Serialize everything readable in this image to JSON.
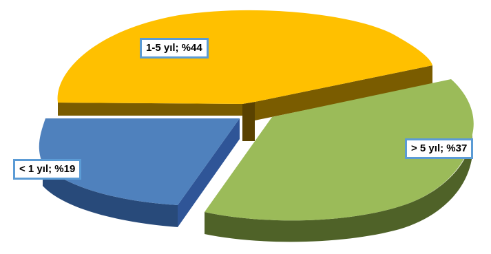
{
  "chart_data": {
    "type": "pie",
    "three_d": true,
    "exploded": true,
    "slices": [
      {
        "label": "1-5 yıl; %44",
        "category": "1-5 yıl",
        "value": 44,
        "color": "#ffc000"
      },
      {
        "label": "> 5 yıl; %37",
        "category": "> 5 yıl",
        "value": 37,
        "color": "#9bbb59"
      },
      {
        "label": "< 1 yıl; %19",
        "category": "< 1 yıl",
        "value": 19,
        "color": "#4f81bd"
      }
    ],
    "data_label_border_color": "#5b9bd5",
    "legend": "none"
  }
}
